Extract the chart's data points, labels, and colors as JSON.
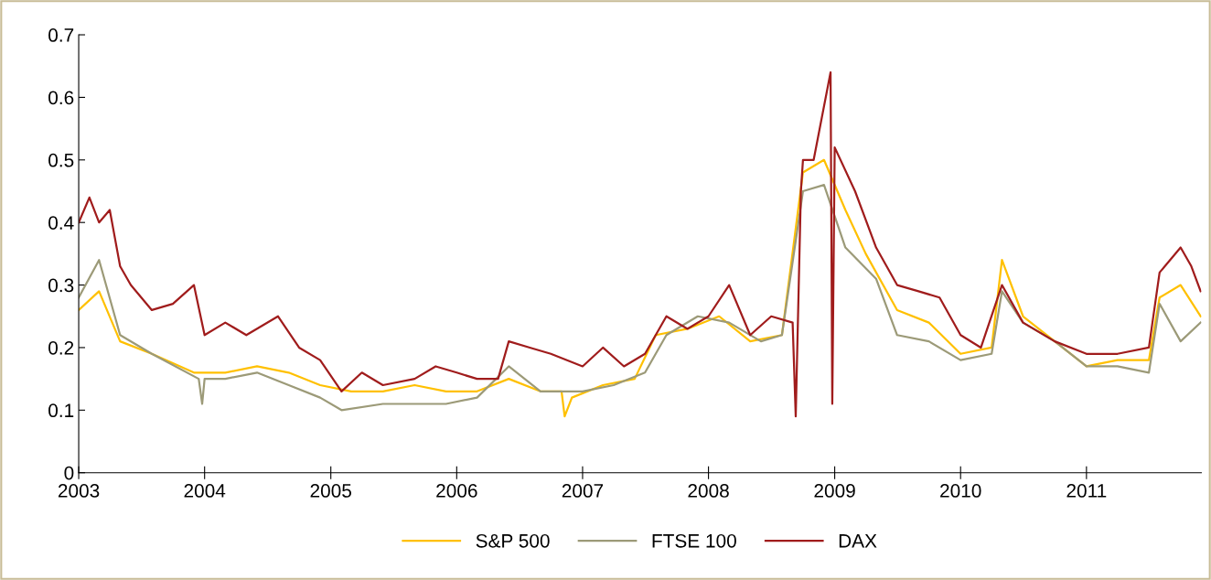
{
  "chart_data": {
    "type": "line",
    "legend": "bottom",
    "grid": false,
    "marker": "none",
    "line_style": "solid",
    "xlim": [
      "2003-01-01",
      "2011-11-30"
    ],
    "xticks": [
      {
        "value": "2003-01-01",
        "label": "2003"
      },
      {
        "value": "2004-01-01",
        "label": "2004"
      },
      {
        "value": "2005-01-01",
        "label": "2005"
      },
      {
        "value": "2006-01-01",
        "label": "2006"
      },
      {
        "value": "2007-01-01",
        "label": "2007"
      },
      {
        "value": "2008-01-01",
        "label": "2008"
      },
      {
        "value": "2009-01-01",
        "label": "2009"
      },
      {
        "value": "2010-01-01",
        "label": "2010"
      },
      {
        "value": "2011-01-01",
        "label": "2011"
      }
    ],
    "ylim": [
      0,
      0.7
    ],
    "yticks": [
      0,
      0.1,
      0.2,
      0.3,
      0.4,
      0.5,
      0.6,
      0.7
    ],
    "series": [
      {
        "name": "S&P 500",
        "color": "#ffc000",
        "x": [
          "2003-01-01",
          "2003-03",
          "2003-05",
          "2003-08",
          "2003-12",
          "2004-03",
          "2004-06",
          "2004-09",
          "2004-12",
          "2005-03",
          "2005-06",
          "2005-09",
          "2005-12",
          "2006-03",
          "2006-06",
          "2006-09",
          "2006-11-01",
          "2006-11-10",
          "2006-12",
          "2007-03",
          "2007-06",
          "2007-08",
          "2007-11",
          "2008-02",
          "2008-05",
          "2008-08",
          "2008-10",
          "2008-12",
          "2009-02",
          "2009-04",
          "2009-07",
          "2009-10",
          "2010-01",
          "2010-04",
          "2010-05",
          "2010-07",
          "2010-10",
          "2011-01",
          "2011-04",
          "2011-07",
          "2011-08",
          "2011-10",
          "2011-11-28"
        ],
        "values": [
          0.26,
          0.29,
          0.21,
          0.19,
          0.16,
          0.16,
          0.17,
          0.16,
          0.14,
          0.13,
          0.13,
          0.14,
          0.13,
          0.13,
          0.15,
          0.13,
          0.13,
          0.09,
          0.12,
          0.14,
          0.15,
          0.22,
          0.23,
          0.25,
          0.21,
          0.22,
          0.48,
          0.5,
          0.42,
          0.35,
          0.26,
          0.24,
          0.19,
          0.2,
          0.34,
          0.25,
          0.21,
          0.17,
          0.18,
          0.18,
          0.28,
          0.3,
          0.25
        ]
      },
      {
        "name": "FTSE 100",
        "color": "#9c9a78",
        "x": [
          "2003-01-01",
          "2003-03",
          "2003-05",
          "2003-08",
          "2003-12-15",
          "2003-12-25",
          "2004-01",
          "2004-03",
          "2004-06",
          "2004-09",
          "2004-12",
          "2005-02",
          "2005-06",
          "2005-09",
          "2005-12",
          "2006-03",
          "2006-06",
          "2006-09",
          "2007-01",
          "2007-04",
          "2007-07",
          "2007-09",
          "2007-12",
          "2008-03",
          "2008-06",
          "2008-08",
          "2008-10",
          "2008-12",
          "2009-02",
          "2009-05",
          "2009-07",
          "2009-10",
          "2010-01",
          "2010-04",
          "2010-05",
          "2010-07",
          "2010-10",
          "2011-01",
          "2011-04",
          "2011-07",
          "2011-08",
          "2011-10",
          "2011-11-28"
        ],
        "values": [
          0.28,
          0.34,
          0.22,
          0.19,
          0.15,
          0.11,
          0.15,
          0.15,
          0.16,
          0.14,
          0.12,
          0.1,
          0.11,
          0.11,
          0.11,
          0.12,
          0.17,
          0.13,
          0.13,
          0.14,
          0.16,
          0.22,
          0.25,
          0.24,
          0.21,
          0.22,
          0.45,
          0.46,
          0.36,
          0.31,
          0.22,
          0.21,
          0.18,
          0.19,
          0.29,
          0.24,
          0.21,
          0.17,
          0.17,
          0.16,
          0.27,
          0.21,
          0.24
        ]
      },
      {
        "name": "DAX",
        "color": "#a01c1c",
        "x": [
          "2003-01-01",
          "2003-02",
          "2003-03",
          "2003-04",
          "2003-05",
          "2003-06",
          "2003-08",
          "2003-10",
          "2003-12",
          "2004-01",
          "2004-03",
          "2004-05",
          "2004-08",
          "2004-10",
          "2004-12",
          "2005-02",
          "2005-04",
          "2005-06",
          "2005-09",
          "2005-11",
          "2006-01",
          "2006-03",
          "2006-05",
          "2006-06",
          "2006-08",
          "2006-10",
          "2007-01",
          "2007-03",
          "2007-05",
          "2007-07",
          "2007-09",
          "2007-11",
          "2008-01",
          "2008-03",
          "2008-05",
          "2008-07",
          "2008-09-01",
          "2008-09-10",
          "2008-09-25",
          "2008-10",
          "2008-11",
          "2008-12-20",
          "2008-12-25",
          "2009-01",
          "2009-03",
          "2009-05",
          "2009-07",
          "2009-09",
          "2009-11",
          "2010-01",
          "2010-03",
          "2010-05",
          "2010-07",
          "2010-10",
          "2011-01",
          "2011-04",
          "2011-07",
          "2011-08",
          "2011-10",
          "2011-11",
          "2011-11-28"
        ],
        "values": [
          0.4,
          0.44,
          0.4,
          0.42,
          0.33,
          0.3,
          0.26,
          0.27,
          0.3,
          0.22,
          0.24,
          0.22,
          0.25,
          0.2,
          0.18,
          0.13,
          0.16,
          0.14,
          0.15,
          0.17,
          0.16,
          0.15,
          0.15,
          0.21,
          0.2,
          0.19,
          0.17,
          0.2,
          0.17,
          0.19,
          0.25,
          0.23,
          0.25,
          0.3,
          0.22,
          0.25,
          0.24,
          0.09,
          0.45,
          0.5,
          0.5,
          0.64,
          0.11,
          0.52,
          0.45,
          0.36,
          0.3,
          0.29,
          0.28,
          0.22,
          0.2,
          0.3,
          0.24,
          0.21,
          0.19,
          0.19,
          0.2,
          0.32,
          0.36,
          0.33,
          0.29
        ]
      }
    ]
  }
}
